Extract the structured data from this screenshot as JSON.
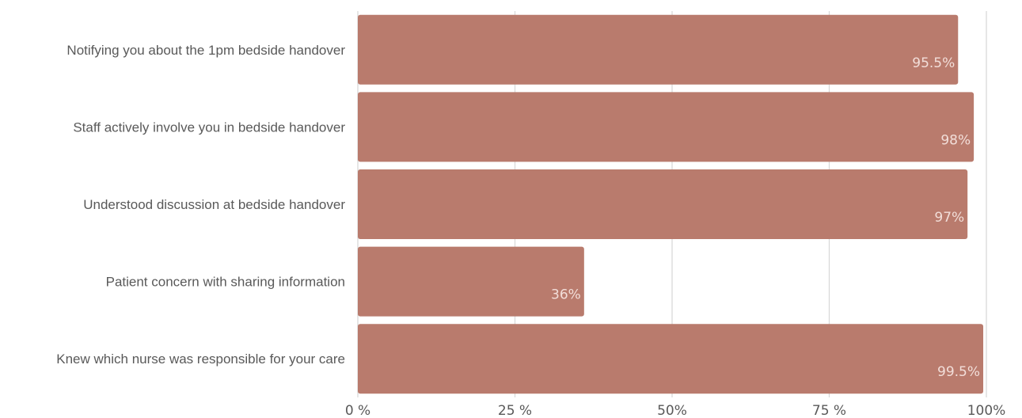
{
  "chart_data": {
    "type": "bar",
    "orientation": "horizontal",
    "title": "",
    "xlabel": "",
    "ylabel": "",
    "categories": [
      "Notifying you about the 1pm bedside handover",
      "Staff actively involve you in bedside handover",
      "Understood discussion at bedside handover",
      "Patient concern with sharing information",
      "Knew which nurse was responsible for your care"
    ],
    "values": [
      95.5,
      98,
      97,
      36,
      99.5
    ],
    "value_labels": [
      "95.5%",
      "98%",
      "97%",
      "36%",
      "99.5%"
    ],
    "xlim": [
      0,
      100
    ],
    "x_ticks": [
      0,
      25,
      50,
      75,
      100
    ],
    "x_tick_labels": [
      "0 %",
      "25 %",
      "50%",
      "75 %",
      "100%"
    ],
    "grid": "vertical",
    "legend": "none",
    "colors": {
      "bar": "#b97b6d",
      "grid": "#d9d9d9",
      "text": "#595959",
      "value_label": "#f2ded9"
    }
  }
}
